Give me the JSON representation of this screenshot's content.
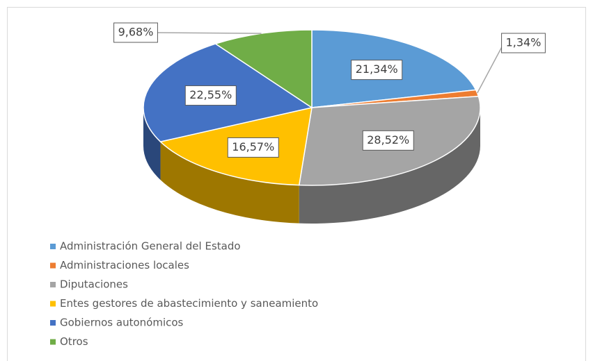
{
  "chart_data": {
    "type": "pie",
    "categories": [
      "Administración General del Estado",
      "Administraciones locales",
      "Diputaciones",
      "Entes gestores de abastecimiento y saneamiento",
      "Gobiernos autonómicos",
      "Otros"
    ],
    "values": [
      21.34,
      1.34,
      28.52,
      16.57,
      22.55,
      9.68
    ],
    "value_labels": [
      "21,34%",
      "1,34%",
      "28,52%",
      "16,57%",
      "22,55%",
      "9,68%"
    ],
    "colors": [
      "#5b9bd5",
      "#ed7d31",
      "#a5a5a5",
      "#ffc000",
      "#4472c4",
      "#70ad47"
    ],
    "legend": "bottom-left"
  }
}
